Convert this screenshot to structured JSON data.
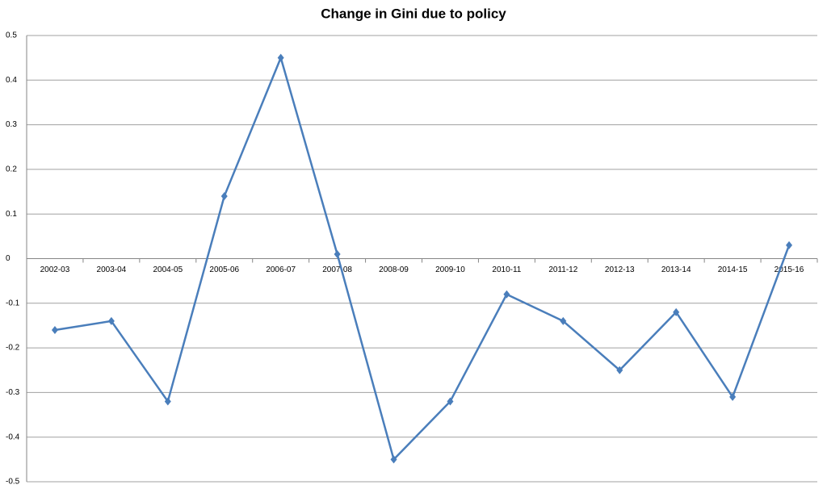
{
  "chart_data": {
    "type": "line",
    "title": "Change in Gini due to policy",
    "categories": [
      "2002-03",
      "2003-04",
      "2004-05",
      "2005-06",
      "2006-07",
      "2007-08",
      "2008-09",
      "2009-10",
      "2010-11",
      "2011-12",
      "2012-13",
      "2013-14",
      "2014-15",
      "2015-16"
    ],
    "series": [
      {
        "name": "Change in Gini",
        "color": "#4a7ebb",
        "values": [
          -0.16,
          -0.14,
          -0.32,
          0.14,
          0.45,
          0.01,
          -0.45,
          -0.32,
          -0.08,
          -0.14,
          -0.25,
          -0.12,
          -0.31,
          0.03
        ]
      }
    ],
    "ylim": [
      -0.5,
      0.5
    ],
    "yticks": [
      0.5,
      0.4,
      0.3,
      0.2,
      0.1,
      0,
      -0.1,
      -0.2,
      -0.3,
      -0.4,
      -0.5
    ],
    "grid": true
  }
}
